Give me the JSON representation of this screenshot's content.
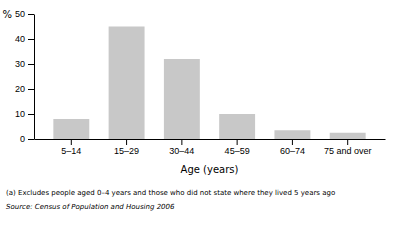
{
  "chart_data": {
    "type": "bar",
    "categories": [
      "5–14",
      "15–29",
      "30–44",
      "45–59",
      "60–74",
      "75 and over"
    ],
    "values": [
      8,
      45,
      32,
      10,
      3.5,
      2.5
    ],
    "color": "#c8c8c8",
    "xlabel": "Age (years)",
    "ylabel": "%",
    "ylim": [
      0,
      50
    ],
    "yticks": [
      0,
      10,
      20,
      30,
      40,
      50
    ],
    "grid": false,
    "annotations": [
      "(a) Excludes people aged 0–4 years and those who did not state where they lived 5 years ago",
      "Source: Census of Population and Housing 2006"
    ]
  }
}
